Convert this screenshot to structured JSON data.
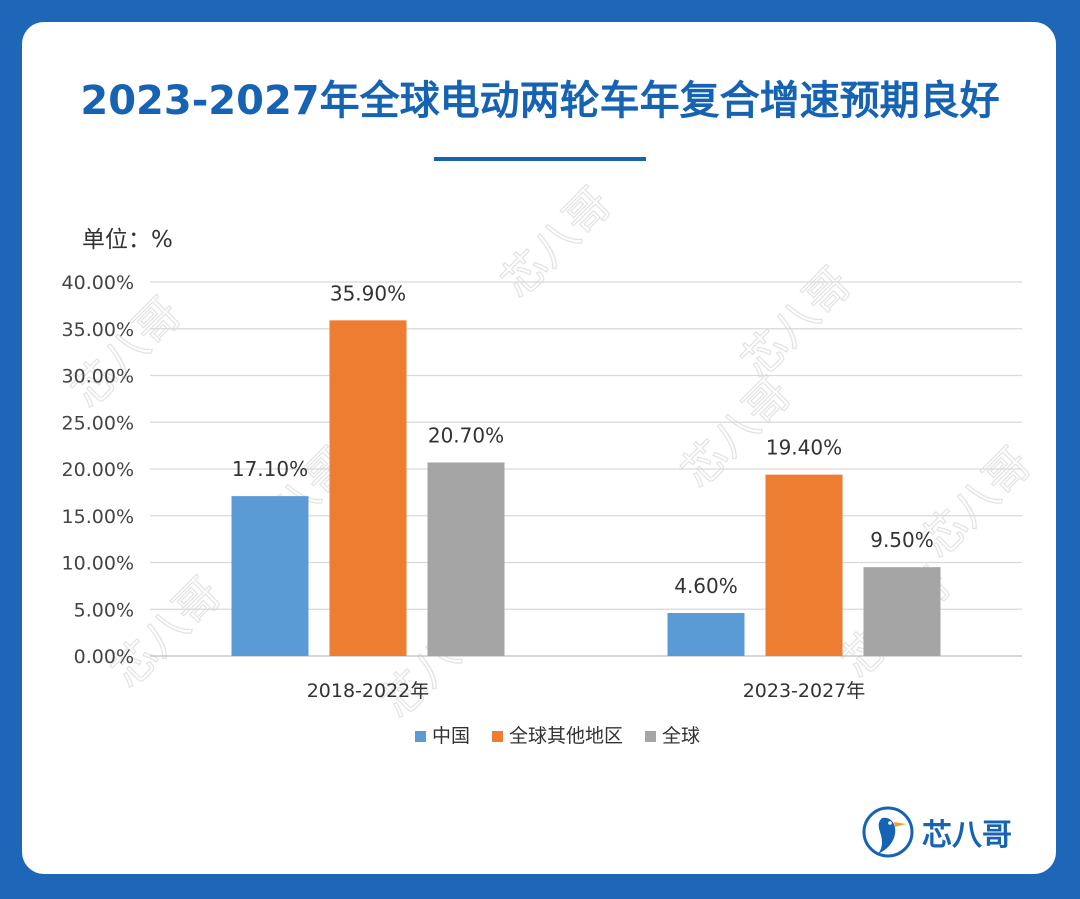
{
  "header": {
    "title": "2023-2027年全球电动两轮车年复合增速预期良好",
    "unit_label": "单位：%"
  },
  "brand": {
    "name": "芯八哥",
    "logo_icon": "kingfisher-bird-icon"
  },
  "watermark": {
    "text": "芯八哥"
  },
  "colors": {
    "title": "#1763b3",
    "background": "#1d66b8",
    "series": [
      "#5b9bd5",
      "#ed7d31",
      "#a5a5a5"
    ],
    "grid": "#d9d9d9"
  },
  "chart_data": {
    "type": "bar",
    "categories": [
      "2018-2022年",
      "2023-2027年"
    ],
    "series": [
      {
        "name": "中国",
        "values": [
          17.1,
          4.6
        ],
        "labels": [
          "17.10%",
          "4.60%"
        ]
      },
      {
        "name": "全球其他地区",
        "values": [
          35.9,
          19.4
        ],
        "labels": [
          "35.90%",
          "19.40%"
        ]
      },
      {
        "name": "全球",
        "values": [
          20.7,
          9.5
        ],
        "labels": [
          "20.70%",
          "9.50%"
        ]
      }
    ],
    "ylim": [
      0,
      40
    ],
    "y_ticks": [
      "0.00%",
      "5.00%",
      "10.00%",
      "15.00%",
      "20.00%",
      "25.00%",
      "30.00%",
      "35.00%",
      "40.00%"
    ],
    "ylabel": "单位：%",
    "grid": true,
    "legend_position": "bottom"
  }
}
